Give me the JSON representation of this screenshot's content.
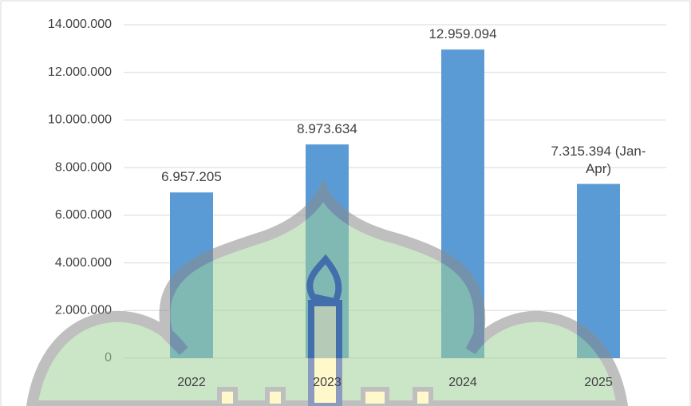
{
  "chart_data": {
    "type": "bar",
    "categories": [
      "2022",
      "2023",
      "2024",
      "2025"
    ],
    "values": [
      6957205,
      8973634,
      12959094,
      7315394
    ],
    "value_labels": [
      "6.957.205",
      "8.973.634",
      "12.959.094",
      "7.315.394 (Jan-Apr)"
    ],
    "color": "#5b9bd5",
    "ylim": [
      0,
      14000000
    ],
    "yticks": [
      0,
      {
        "value": 2000000,
        "label": "2.000.000"
      },
      {
        "value": 4000000,
        "label": "4.000.000"
      },
      {
        "value": 6000000,
        "label": "6.000.000"
      },
      {
        "value": 8000000,
        "label": "8.000.000"
      },
      {
        "value": 10000000,
        "label": "10.000.000"
      },
      {
        "value": 12000000,
        "label": "12.000.000"
      },
      {
        "value": 14000000,
        "label": "14.000.000"
      }
    ],
    "grid": true
  }
}
